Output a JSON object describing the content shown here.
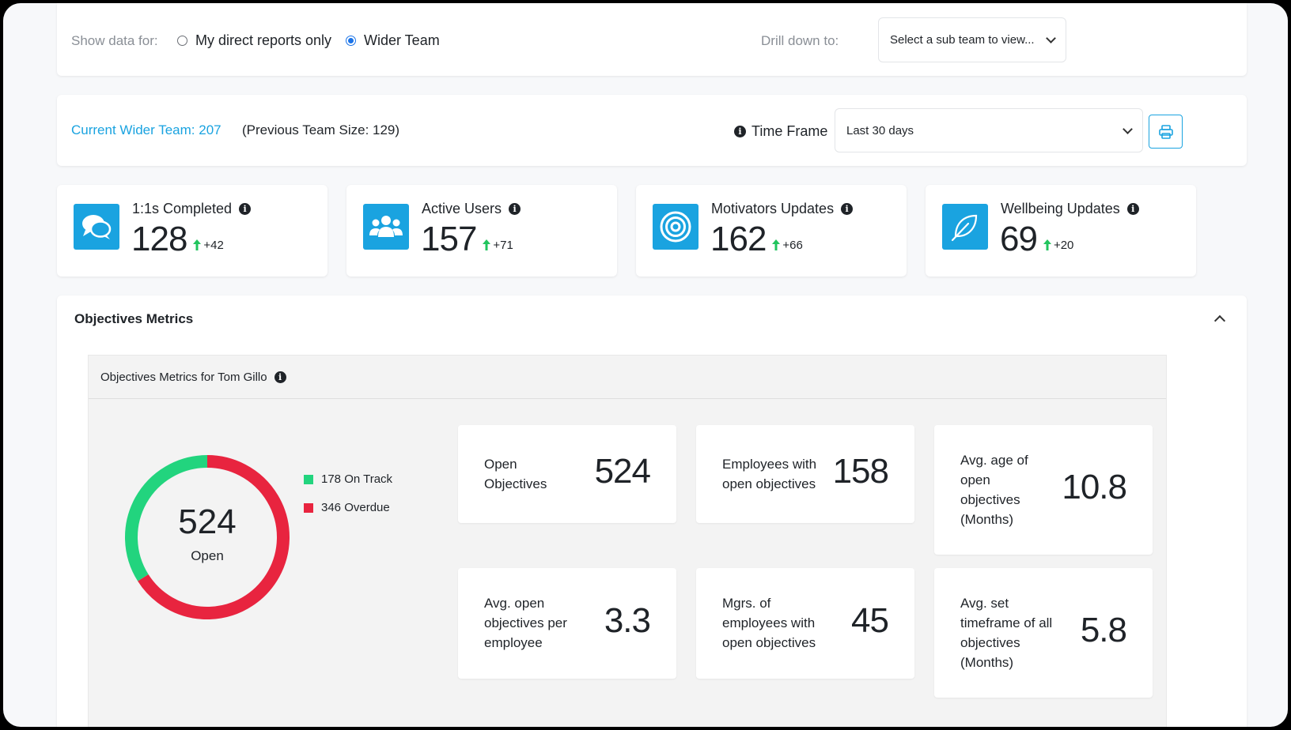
{
  "filter": {
    "show_label": "Show data for:",
    "options": [
      {
        "label": "My direct reports only",
        "checked": false
      },
      {
        "label": "Wider Team",
        "checked": true
      }
    ],
    "drill_label": "Drill down to:",
    "drill_placeholder": "Select a sub team to view..."
  },
  "team": {
    "current": "Current Wider Team: 207",
    "previous": "(Previous Team Size: 129)",
    "timeframe_label": "Time Frame",
    "timeframe_value": "Last 30 days"
  },
  "stats": [
    {
      "title": "1:1s Completed",
      "value": "128",
      "delta": "+42",
      "icon": "chat-bubbles-icon"
    },
    {
      "title": "Active Users",
      "value": "157",
      "delta": "+71",
      "icon": "users-icon"
    },
    {
      "title": "Motivators Updates",
      "value": "162",
      "delta": "+66",
      "icon": "target-icon"
    },
    {
      "title": "Wellbeing Updates",
      "value": "69",
      "delta": "+20",
      "icon": "leaf-icon"
    }
  ],
  "objectives": {
    "section_title": "Objectives Metrics",
    "panel_title": "Objectives Metrics for Tom Gillo",
    "donut": {
      "total": "524",
      "center_label": "Open",
      "segments": [
        {
          "label": "178 On Track",
          "value": 178,
          "color": "#22d47e"
        },
        {
          "label": "346 Overdue",
          "value": 346,
          "color": "#e8243f"
        }
      ]
    },
    "metrics": [
      {
        "label": "Open Objectives",
        "value": "524"
      },
      {
        "label": "Employees with open objectives",
        "value": "158"
      },
      {
        "label": "Avg. age of open objectives (Months)",
        "value": "10.8"
      },
      {
        "label": "Avg. open objectives per employee",
        "value": "3.3"
      },
      {
        "label": "Mgrs. of employees with open objectives",
        "value": "45"
      },
      {
        "label": "Avg. set timeframe of all objectives (Months)",
        "value": "5.8"
      }
    ]
  },
  "colors": {
    "accent": "#1aa3e0",
    "on_track": "#22d47e",
    "overdue": "#e8243f",
    "delta_up": "#22c55e"
  }
}
